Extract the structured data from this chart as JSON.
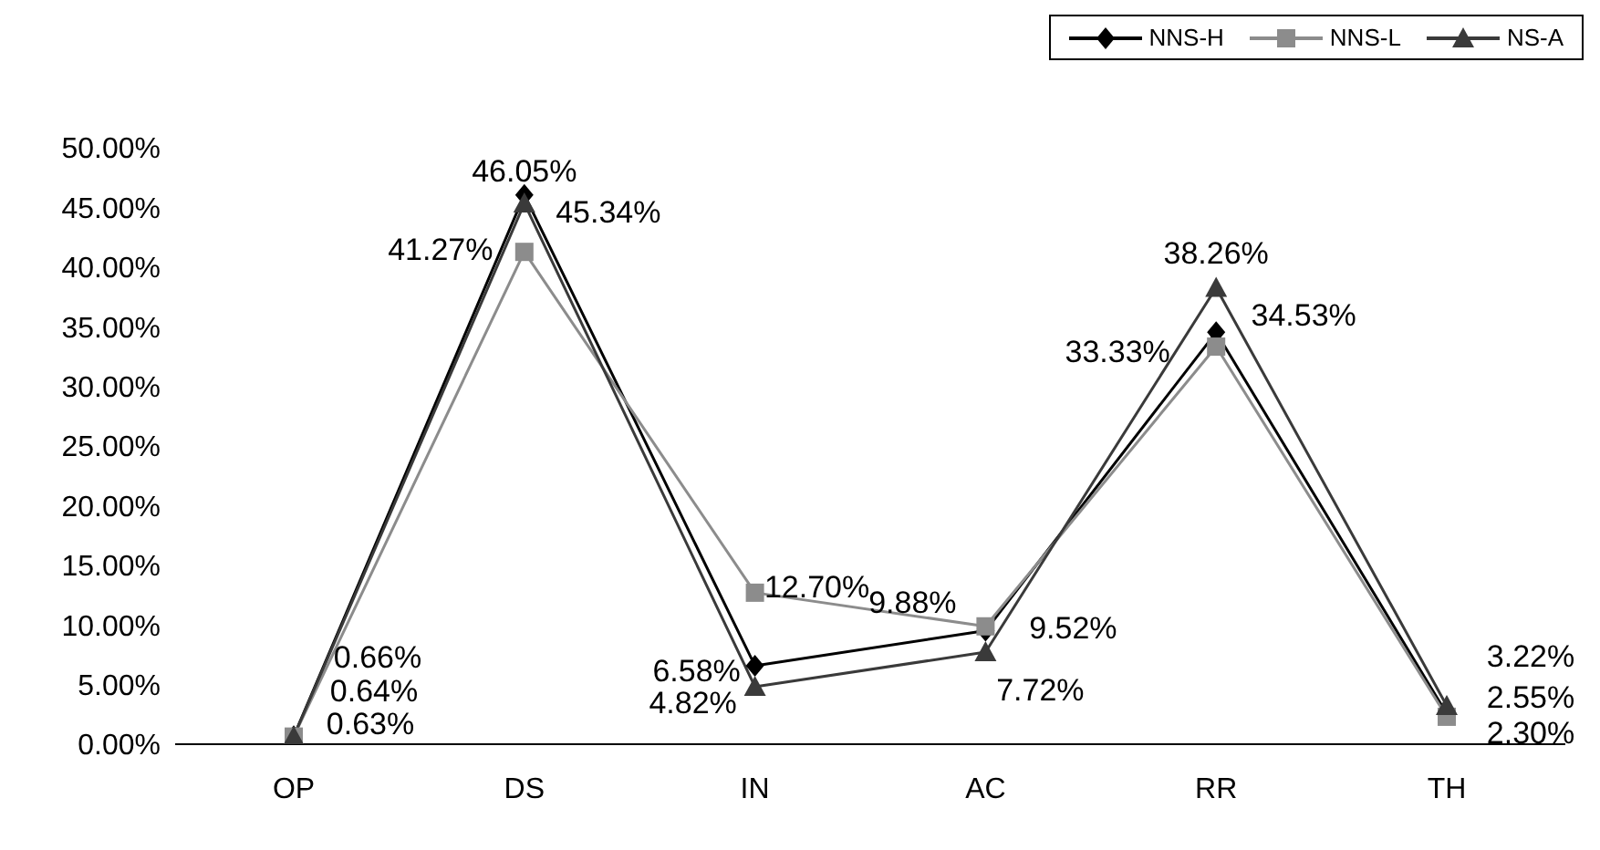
{
  "chart_data": {
    "type": "line",
    "categories": [
      "OP",
      "DS",
      "IN",
      "AC",
      "RR",
      "TH"
    ],
    "series": [
      {
        "name": "NNS-H",
        "color": "#000000",
        "marker": "diamond",
        "values": [
          0.66,
          46.05,
          6.58,
          9.52,
          34.53,
          2.55
        ],
        "value_labels": [
          "0.66%",
          "46.05%",
          "6.58%",
          "9.52%",
          "34.53%",
          "2.55%"
        ]
      },
      {
        "name": "NNS-L",
        "color": "#8c8c8c",
        "marker": "square",
        "values": [
          0.64,
          41.27,
          12.7,
          9.88,
          33.33,
          2.3
        ],
        "value_labels": [
          "0.64%",
          "41.27%",
          "12.70%",
          "9.88%",
          "33.33%",
          "2.30%"
        ]
      },
      {
        "name": "NS-A",
        "color": "#3a3a3a",
        "marker": "triangle",
        "values": [
          0.63,
          45.34,
          4.82,
          7.72,
          38.26,
          3.22
        ],
        "value_labels": [
          "0.63%",
          "45.34%",
          "4.82%",
          "7.72%",
          "38.26%",
          "3.22%"
        ]
      }
    ],
    "ylim": [
      0,
      50
    ],
    "yticks": [
      {
        "value": 0,
        "label": "0.00%"
      },
      {
        "value": 5,
        "label": "5.00%"
      },
      {
        "value": 10,
        "label": "10.00%"
      },
      {
        "value": 15,
        "label": "15.00%"
      },
      {
        "value": 20,
        "label": "20.00%"
      },
      {
        "value": 25,
        "label": "25.00%"
      },
      {
        "value": 30,
        "label": "30.00%"
      },
      {
        "value": 35,
        "label": "35.00%"
      },
      {
        "value": 40,
        "label": "40.00%"
      },
      {
        "value": 45,
        "label": "45.00%"
      },
      {
        "value": 50,
        "label": "50.00%"
      }
    ],
    "grid": false,
    "legend": "top right",
    "line_style": "solid"
  }
}
